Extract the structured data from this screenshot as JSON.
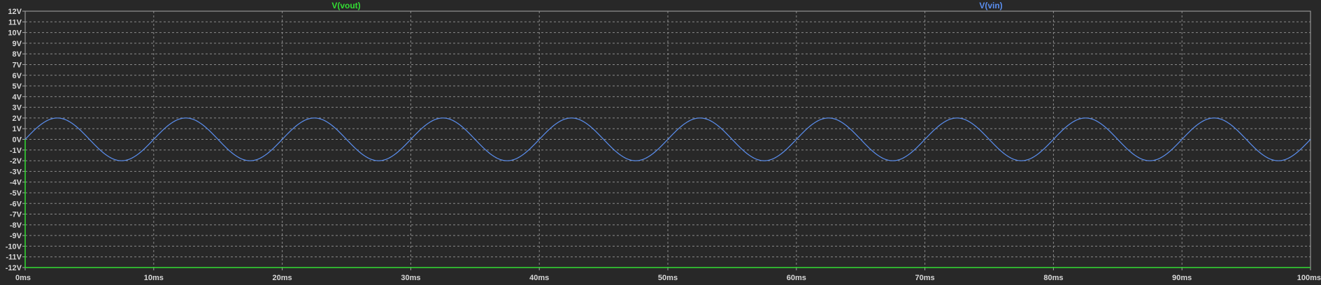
{
  "chart_data": {
    "type": "line",
    "title": "",
    "xlabel": "",
    "ylabel": "",
    "x_unit": "ms",
    "y_unit": "V",
    "xlim": [
      0,
      100
    ],
    "ylim": [
      -12,
      12
    ],
    "grid": true,
    "x_ticks": [
      "0ms",
      "10ms",
      "20ms",
      "30ms",
      "40ms",
      "50ms",
      "60ms",
      "70ms",
      "80ms",
      "90ms",
      "100ms"
    ],
    "y_ticks": [
      "12V",
      "11V",
      "10V",
      "9V",
      "8V",
      "7V",
      "6V",
      "5V",
      "4V",
      "3V",
      "2V",
      "1V",
      "0V",
      "-1V",
      "-2V",
      "-3V",
      "-4V",
      "-5V",
      "-6V",
      "-7V",
      "-8V",
      "-9V",
      "-10V",
      "-11V",
      "-12V"
    ],
    "series": [
      {
        "name": "V(vout)",
        "color": "#33dd33",
        "x": [
          0,
          0,
          100
        ],
        "y": [
          0,
          -12,
          -12
        ]
      },
      {
        "name": "V(vin)",
        "color": "#5b8ff0",
        "function": "sine",
        "amplitude": 2,
        "frequency_hz": 100,
        "offset": 0,
        "x": [
          0,
          2.5,
          5,
          7.5,
          10,
          12.5,
          15,
          17.5,
          20,
          22.5,
          25,
          27.5,
          30,
          32.5,
          35,
          37.5,
          40,
          42.5,
          45,
          47.5,
          50,
          52.5,
          55,
          57.5,
          60,
          62.5,
          65,
          67.5,
          70,
          72.5,
          75,
          77.5,
          80,
          82.5,
          85,
          87.5,
          90,
          92.5,
          95,
          97.5,
          100
        ],
        "y": [
          0,
          2,
          0,
          -2,
          0,
          2,
          0,
          -2,
          0,
          2,
          0,
          -2,
          0,
          2,
          0,
          -2,
          0,
          2,
          0,
          -2,
          0,
          2,
          0,
          -2,
          0,
          2,
          0,
          -2,
          0,
          2,
          0,
          -2,
          0,
          2,
          0,
          -2,
          0,
          2,
          0,
          -2,
          0
        ]
      }
    ]
  },
  "colors": {
    "background": "#282828",
    "grid": "#8a8a8a",
    "frame": "#a8a8a8",
    "tick_text": "#d8d8d8"
  }
}
